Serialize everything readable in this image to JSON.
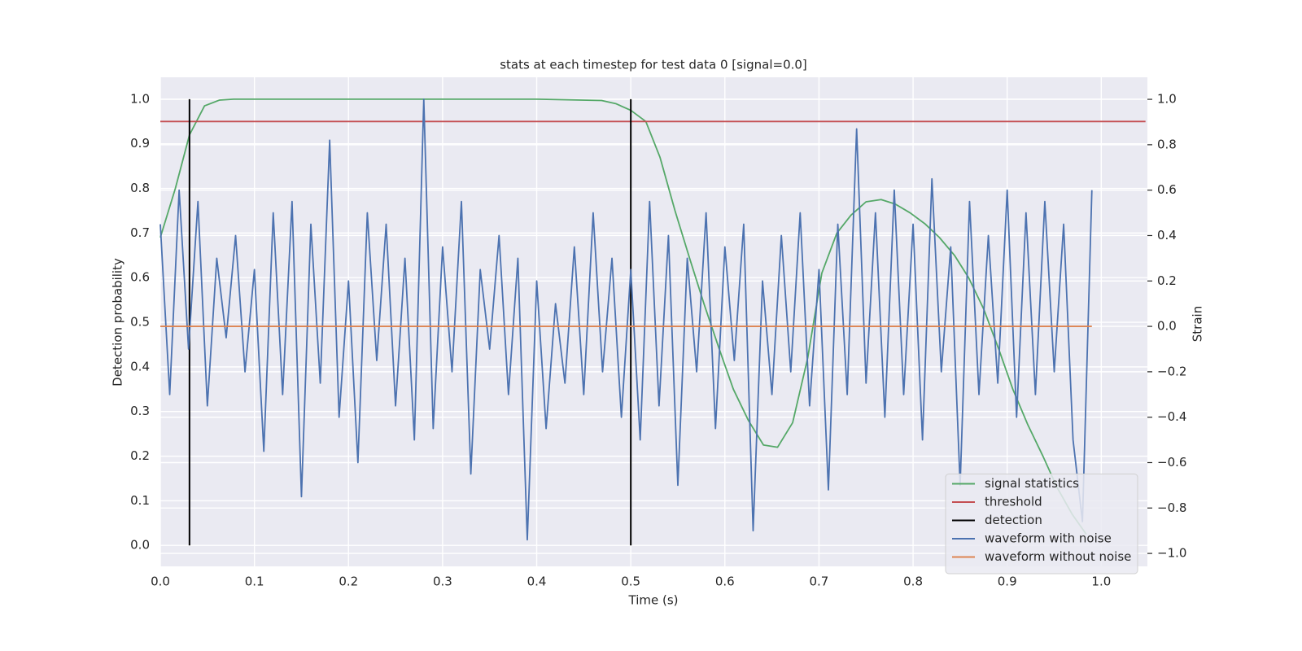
{
  "chart_data": {
    "type": "line",
    "title": "stats at each timestep for test data 0 [signal=0.0]",
    "xlabel": "Time (s)",
    "ylabel": "Detection probability",
    "y2label": "Strain",
    "xlim": [
      0,
      1.049
    ],
    "ylim": [
      -0.047,
      1.049
    ],
    "y2lim": [
      -1.057,
      1.097
    ],
    "xticks": [
      {
        "value": 0,
        "label": "0.0"
      },
      0.1,
      0.2,
      0.3,
      0.4,
      0.5,
      0.6,
      0.7,
      0.8,
      0.9,
      {
        "value": 1,
        "label": "1.0"
      }
    ],
    "yticks": [
      {
        "value": 0,
        "label": "0.0"
      },
      0.1,
      0.2,
      0.3,
      0.4,
      0.5,
      0.6,
      0.7,
      0.8,
      0.9,
      {
        "value": 1,
        "label": "1.0"
      }
    ],
    "y2ticks": [
      {
        "value": -1,
        "label": "−1.0"
      },
      {
        "value": -0.8,
        "label": "−0.8"
      },
      {
        "value": -0.6,
        "label": "−0.6"
      },
      {
        "value": -0.4,
        "label": "−0.4"
      },
      {
        "value": -0.2,
        "label": "−0.2"
      },
      {
        "value": 0,
        "label": "0.0"
      },
      0.2,
      0.4,
      0.6,
      0.8,
      {
        "value": 1,
        "label": "1.0"
      }
    ],
    "grid": true,
    "legend": "lower right",
    "series": [
      {
        "name": "signal statistics",
        "color": "#55a868",
        "axis": "y",
        "x": [
          0,
          0.016,
          0.031,
          0.047,
          0.063,
          0.078,
          0.1,
          0.2,
          0.3,
          0.4,
          0.469,
          0.484,
          0.5,
          0.516,
          0.531,
          0.547,
          0.563,
          0.578,
          0.594,
          0.609,
          0.625,
          0.641,
          0.656,
          0.672,
          0.688,
          0.703,
          0.719,
          0.734,
          0.75,
          0.766,
          0.781,
          0.797,
          0.813,
          0.828,
          0.844,
          0.859,
          0.875,
          0.891,
          0.906,
          0.922,
          0.938,
          0.953,
          0.969,
          0.984
        ],
        "values": [
          0.69,
          0.8,
          0.92,
          0.985,
          0.998,
          1,
          1,
          1,
          1,
          1,
          0.997,
          0.99,
          0.975,
          0.95,
          0.87,
          0.75,
          0.64,
          0.54,
          0.44,
          0.35,
          0.28,
          0.225,
          0.22,
          0.275,
          0.42,
          0.61,
          0.7,
          0.74,
          0.77,
          0.775,
          0.765,
          0.745,
          0.72,
          0.69,
          0.65,
          0.6,
          0.53,
          0.44,
          0.35,
          0.27,
          0.2,
          0.13,
          0.07,
          0.025
        ]
      },
      {
        "name": "threshold",
        "color": "#c44e52",
        "axis": "y",
        "x": [
          0,
          1.047
        ],
        "values": [
          0.95,
          0.95
        ]
      },
      {
        "name": "detection",
        "color": "#000000",
        "axis": "y",
        "style": "vlines",
        "x": [
          0.031,
          0.5
        ],
        "values": [
          1,
          1
        ]
      },
      {
        "name": "waveform with noise",
        "color": "#4c72b0",
        "axis": "y2",
        "x": [
          0,
          0.01,
          0.02,
          0.03,
          0.04,
          0.05,
          0.06,
          0.07,
          0.08,
          0.09,
          0.1,
          0.11,
          0.12,
          0.13,
          0.14,
          0.15,
          0.16,
          0.17,
          0.18,
          0.19,
          0.2,
          0.21,
          0.22,
          0.23,
          0.24,
          0.25,
          0.26,
          0.27,
          0.28,
          0.29,
          0.3,
          0.31,
          0.32,
          0.33,
          0.34,
          0.35,
          0.36,
          0.37,
          0.38,
          0.39,
          0.4,
          0.41,
          0.42,
          0.43,
          0.44,
          0.45,
          0.46,
          0.47,
          0.48,
          0.49,
          0.5,
          0.51,
          0.52,
          0.53,
          0.54,
          0.55,
          0.56,
          0.57,
          0.58,
          0.59,
          0.6,
          0.61,
          0.62,
          0.63,
          0.64,
          0.65,
          0.66,
          0.67,
          0.68,
          0.69,
          0.7,
          0.71,
          0.72,
          0.73,
          0.74,
          0.75,
          0.76,
          0.77,
          0.78,
          0.79,
          0.8,
          0.81,
          0.82,
          0.83,
          0.84,
          0.85,
          0.86,
          0.87,
          0.88,
          0.89,
          0.9,
          0.91,
          0.92,
          0.93,
          0.94,
          0.95,
          0.96,
          0.97,
          0.98,
          0.99
        ],
        "values": [
          0.45,
          -0.3,
          0.6,
          -0.1,
          0.55,
          -0.35,
          0.3,
          -0.05,
          0.4,
          -0.2,
          0.25,
          -0.55,
          0.5,
          -0.3,
          0.55,
          -0.75,
          0.45,
          -0.25,
          0.82,
          -0.4,
          0.2,
          -0.6,
          0.5,
          -0.15,
          0.45,
          -0.35,
          0.3,
          -0.5,
          1,
          -0.45,
          0.35,
          -0.2,
          0.55,
          -0.65,
          0.25,
          -0.1,
          0.4,
          -0.3,
          0.3,
          -0.94,
          0.2,
          -0.45,
          0.1,
          -0.25,
          0.35,
          -0.3,
          0.5,
          -0.2,
          0.3,
          -0.4,
          0.25,
          -0.5,
          0.55,
          -0.35,
          0.4,
          -0.7,
          0.3,
          -0.2,
          0.5,
          -0.45,
          0.35,
          -0.15,
          0.45,
          -0.9,
          0.2,
          -0.3,
          0.4,
          -0.2,
          0.5,
          -0.35,
          0.25,
          -0.72,
          0.45,
          -0.3,
          0.87,
          -0.25,
          0.5,
          -0.4,
          0.6,
          -0.3,
          0.45,
          -0.5,
          0.65,
          -0.2,
          0.35,
          -0.7,
          0.55,
          -0.3,
          0.4,
          -0.25,
          0.6,
          -0.4,
          0.5,
          -0.3,
          0.55,
          -0.2,
          0.45,
          -0.5,
          -0.86,
          0.6
        ]
      },
      {
        "name": "waveform without noise",
        "color": "#dd8452",
        "axis": "y2",
        "x": [
          0,
          0.99
        ],
        "values": [
          0,
          0
        ]
      }
    ]
  }
}
